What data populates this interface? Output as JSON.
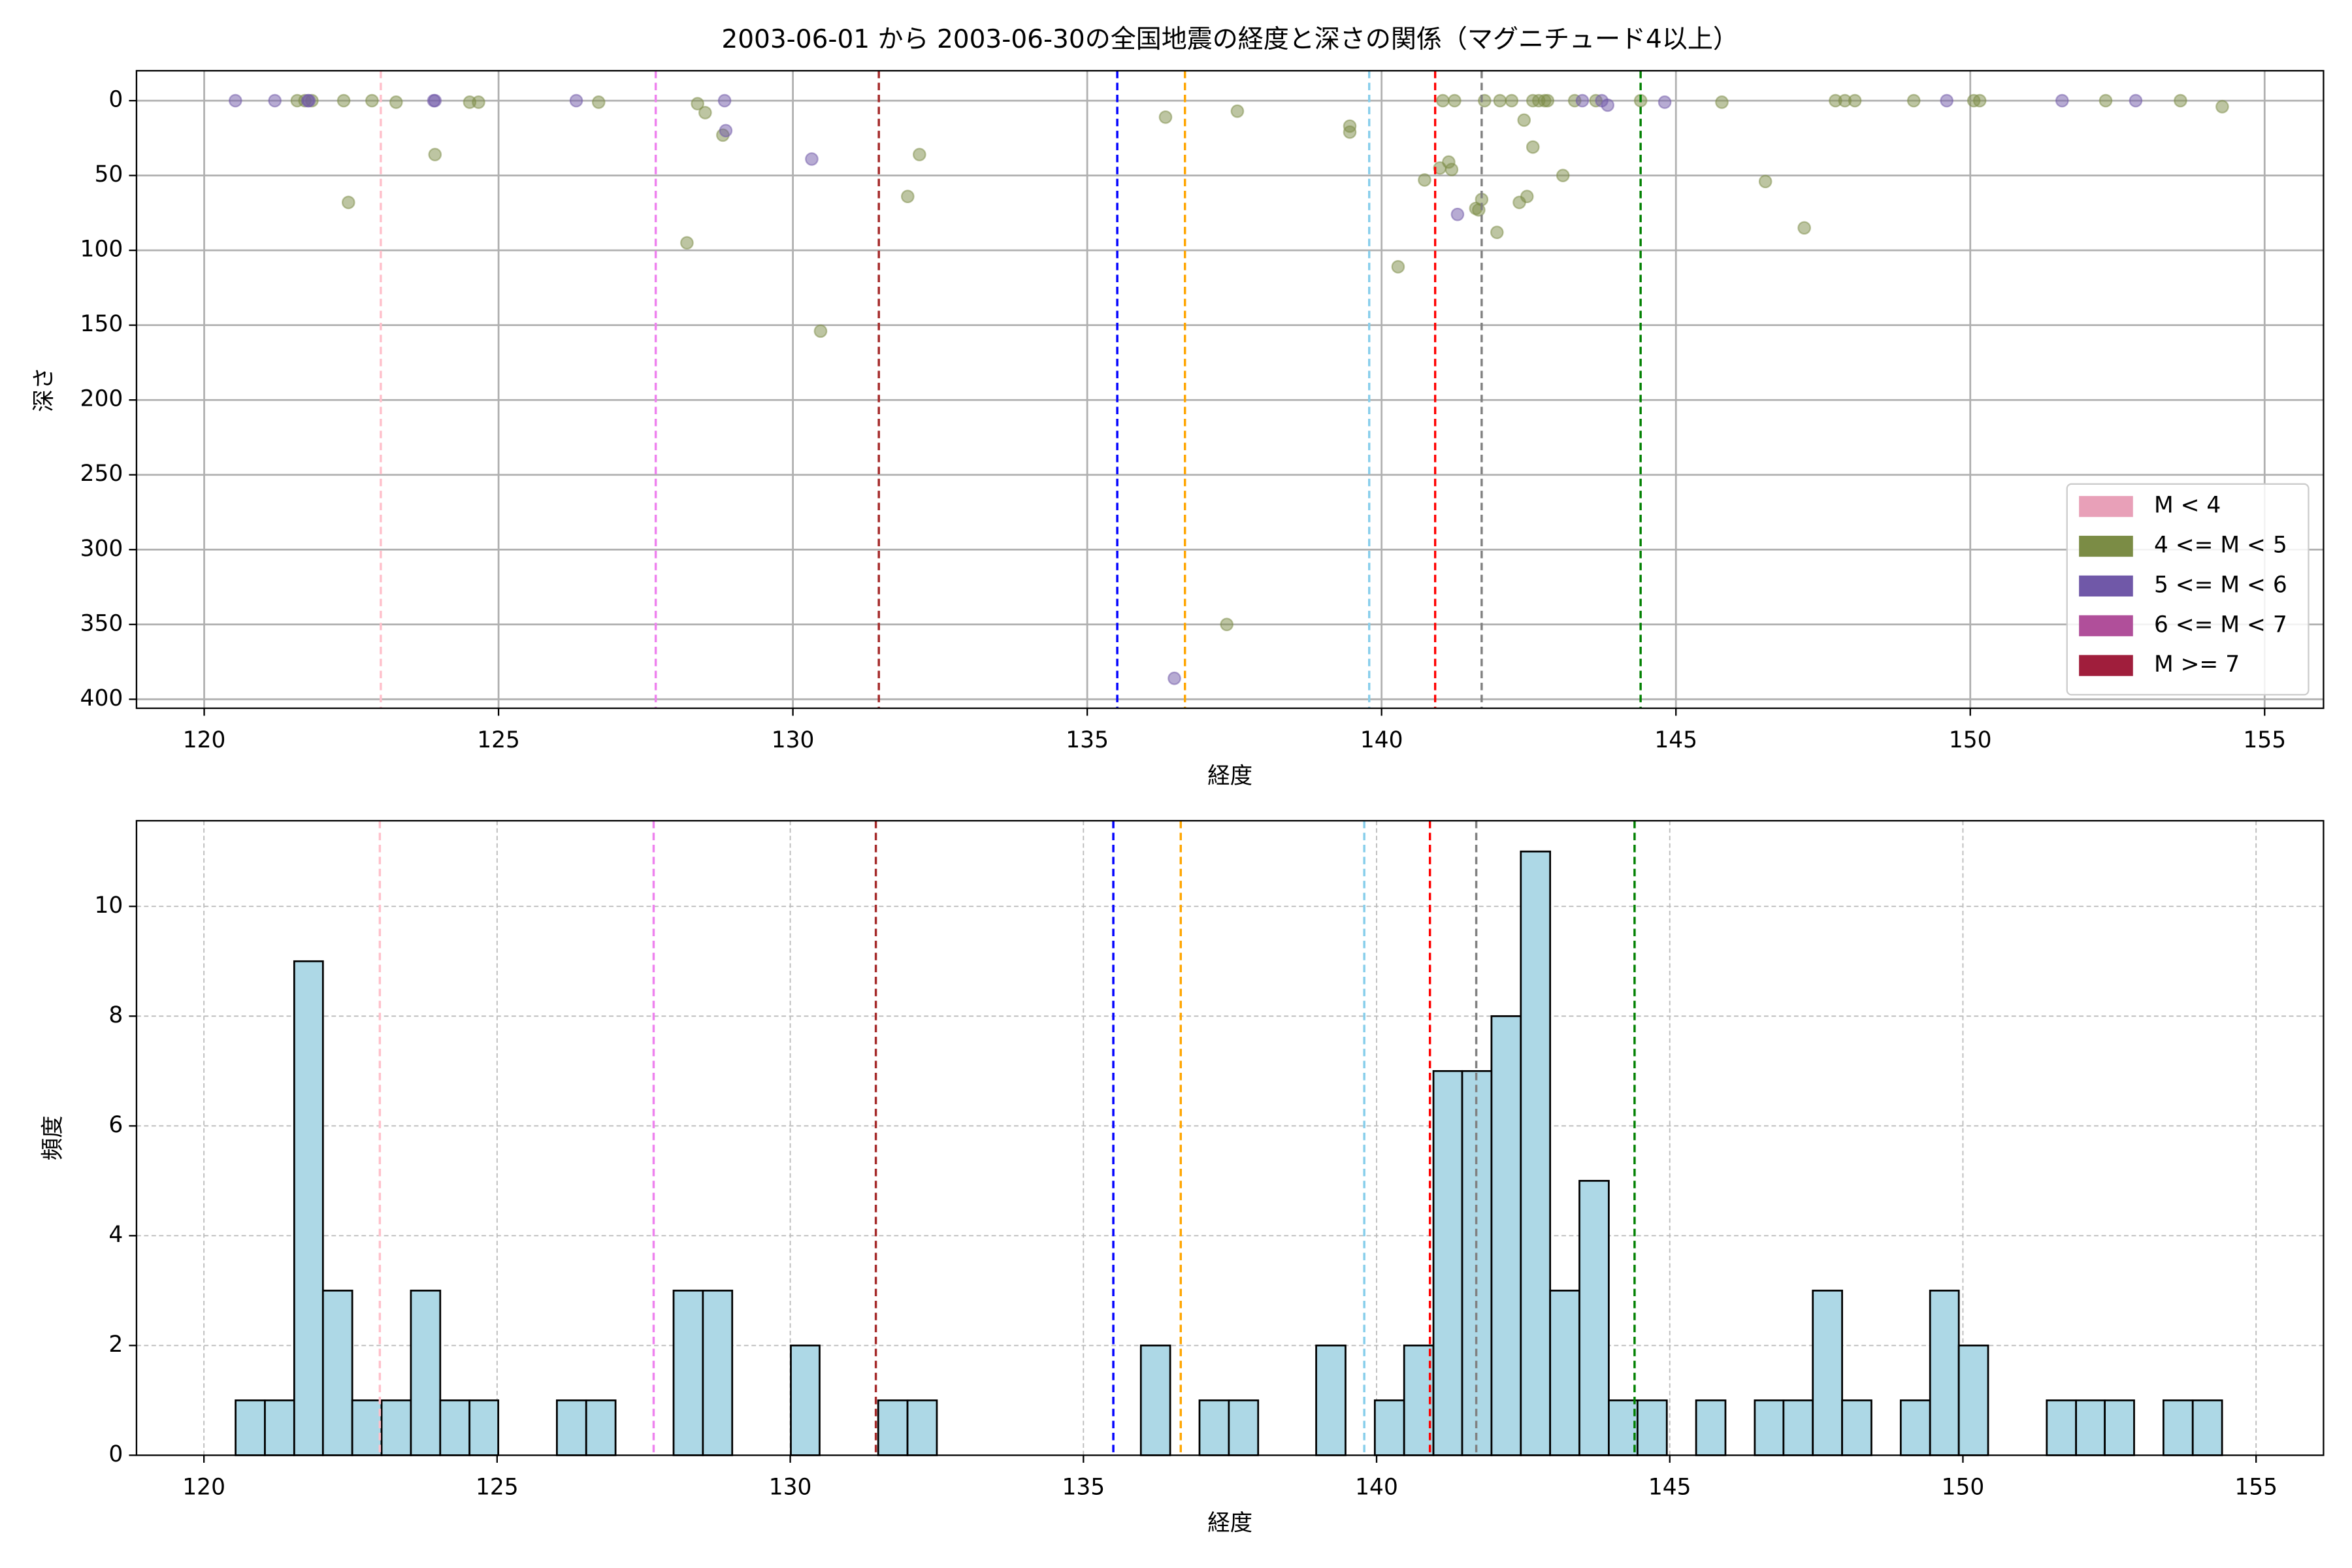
{
  "title": "2003-06-01 から 2003-06-30の全国地震の経度と深さの関係（マグニチュード4以上）",
  "chart_data": [
    {
      "type": "scatter",
      "xlabel": "経度",
      "ylabel": "深さ",
      "xlim": [
        118.85,
        156.0
      ],
      "ylim": [
        406,
        -20
      ],
      "xticks": [
        120,
        125,
        130,
        135,
        140,
        145,
        150,
        155
      ],
      "yticks": [
        0,
        50,
        100,
        150,
        200,
        250,
        300,
        350,
        400
      ],
      "grid": true,
      "grid_style": "solid",
      "alpha": 0.5,
      "legend": "lower right",
      "vlines": [
        {
          "x": 123.0,
          "color": "pink"
        },
        {
          "x": 127.67,
          "color": "violet"
        },
        {
          "x": 131.46,
          "color": "brown"
        },
        {
          "x": 135.51,
          "color": "blue"
        },
        {
          "x": 136.66,
          "color": "orange"
        },
        {
          "x": 139.79,
          "color": "skyblue"
        },
        {
          "x": 140.91,
          "color": "red"
        },
        {
          "x": 141.7,
          "color": "gray"
        },
        {
          "x": 144.4,
          "color": "green"
        }
      ],
      "series": [
        {
          "name": "M < 4",
          "color": "#e8a0b8",
          "x": [],
          "y": []
        },
        {
          "name": "4 <= M < 5",
          "color": "#7b8c45",
          "x": [
            121.58,
            121.71,
            121.83,
            122.37,
            122.45,
            122.85,
            123.26,
            123.92,
            124.51,
            124.66,
            126.7,
            128.38,
            128.51,
            128.81,
            128.2,
            130.47,
            131.95,
            132.15,
            136.33,
            137.55,
            137.37,
            139.46,
            139.46,
            140.28,
            140.73,
            140.99,
            141.04,
            141.14,
            141.19,
            141.24,
            141.6,
            141.65,
            141.7,
            141.96,
            141.75,
            142.01,
            142.21,
            142.34,
            142.42,
            142.47,
            142.57,
            142.57,
            142.67,
            142.77,
            142.82,
            143.08,
            143.28,
            143.64,
            144.4,
            145.78,
            146.52,
            147.18,
            147.71,
            147.87,
            148.04,
            149.04,
            150.06,
            150.16,
            152.3,
            153.57,
            154.28
          ],
          "y": [
            0,
            0,
            0,
            0,
            68,
            0,
            1,
            36,
            1,
            1,
            1,
            2,
            8,
            23,
            95,
            154,
            64,
            36,
            11,
            7,
            350,
            21,
            17,
            111,
            53,
            45,
            0,
            41,
            46,
            0,
            72,
            73,
            66,
            88,
            0,
            0,
            0,
            68,
            13,
            64,
            31,
            0,
            0,
            0,
            0,
            50,
            0,
            0,
            0,
            1,
            54,
            85,
            0,
            0,
            0,
            0,
            0,
            0,
            0,
            0,
            4
          ]
        },
        {
          "name": "5 <= M < 6",
          "color": "#7058a8",
          "x": [
            120.53,
            121.2,
            121.76,
            121.78,
            123.9,
            123.92,
            126.32,
            128.84,
            128.86,
            130.32,
            141.29,
            143.41,
            143.74,
            143.84,
            144.81,
            149.6,
            151.56,
            152.81,
            136.48
          ],
          "y": [
            0,
            0,
            0,
            0,
            0,
            0,
            0,
            0,
            20,
            39,
            76,
            0,
            0,
            3,
            1,
            0,
            0,
            0,
            386
          ]
        },
        {
          "name": "6 <= M < 7",
          "color": "#b04f9a",
          "x": [],
          "y": []
        },
        {
          "name": "M >= 7",
          "color": "#a01e3c",
          "x": [],
          "y": []
        }
      ]
    },
    {
      "type": "histogram",
      "xlabel": "経度",
      "ylabel": "頻度",
      "xlim": [
        118.85,
        156.15
      ],
      "ylim": [
        0,
        11.56
      ],
      "xticks": [
        120,
        125,
        130,
        135,
        140,
        145,
        150,
        155
      ],
      "yticks": [
        0,
        2,
        4,
        6,
        8,
        10
      ],
      "grid": true,
      "grid_style": "dashed",
      "color": "#add8e6",
      "edgecolor": "#000000",
      "vlines": [
        {
          "x": 123.0,
          "color": "pink"
        },
        {
          "x": 127.67,
          "color": "violet"
        },
        {
          "x": 131.46,
          "color": "brown"
        },
        {
          "x": 135.51,
          "color": "blue"
        },
        {
          "x": 136.66,
          "color": "orange"
        },
        {
          "x": 139.79,
          "color": "skyblue"
        },
        {
          "x": 140.91,
          "color": "red"
        },
        {
          "x": 141.7,
          "color": "gray"
        },
        {
          "x": 144.4,
          "color": "green"
        }
      ],
      "bins": [
        120.54,
        121.04,
        121.54,
        122.03,
        122.53,
        123.03,
        123.53,
        124.03,
        124.53,
        125.02,
        125.52,
        126.02,
        126.52,
        127.02,
        127.51,
        128.01,
        128.51,
        129.01,
        129.51,
        130.01,
        130.5,
        131.0,
        131.5,
        132.0,
        132.5,
        133.0,
        133.49,
        133.99,
        134.49,
        134.99,
        135.49,
        135.98,
        136.48,
        136.98,
        137.48,
        137.98,
        138.48,
        138.97,
        139.47,
        139.97,
        140.47,
        140.97,
        141.46,
        141.96,
        142.46,
        142.96,
        143.46,
        143.96,
        144.45,
        144.95,
        145.45,
        145.95,
        146.45,
        146.94,
        147.44,
        147.94,
        148.44,
        148.94,
        149.44,
        149.93,
        150.43,
        150.93,
        151.43,
        151.93,
        152.42,
        152.92,
        153.42,
        153.92,
        154.42
      ],
      "counts": [
        1,
        1,
        9,
        3,
        1,
        1,
        3,
        1,
        1,
        0,
        0,
        1,
        1,
        0,
        0,
        3,
        3,
        0,
        0,
        2,
        0,
        0,
        1,
        1,
        0,
        0,
        0,
        0,
        0,
        0,
        0,
        2,
        0,
        1,
        1,
        0,
        0,
        2,
        0,
        1,
        2,
        7,
        7,
        8,
        11,
        3,
        5,
        1,
        1,
        0,
        1,
        0,
        1,
        1,
        3,
        1,
        0,
        1,
        3,
        2,
        0,
        0,
        1,
        1,
        1,
        0,
        1,
        1
      ]
    }
  ]
}
